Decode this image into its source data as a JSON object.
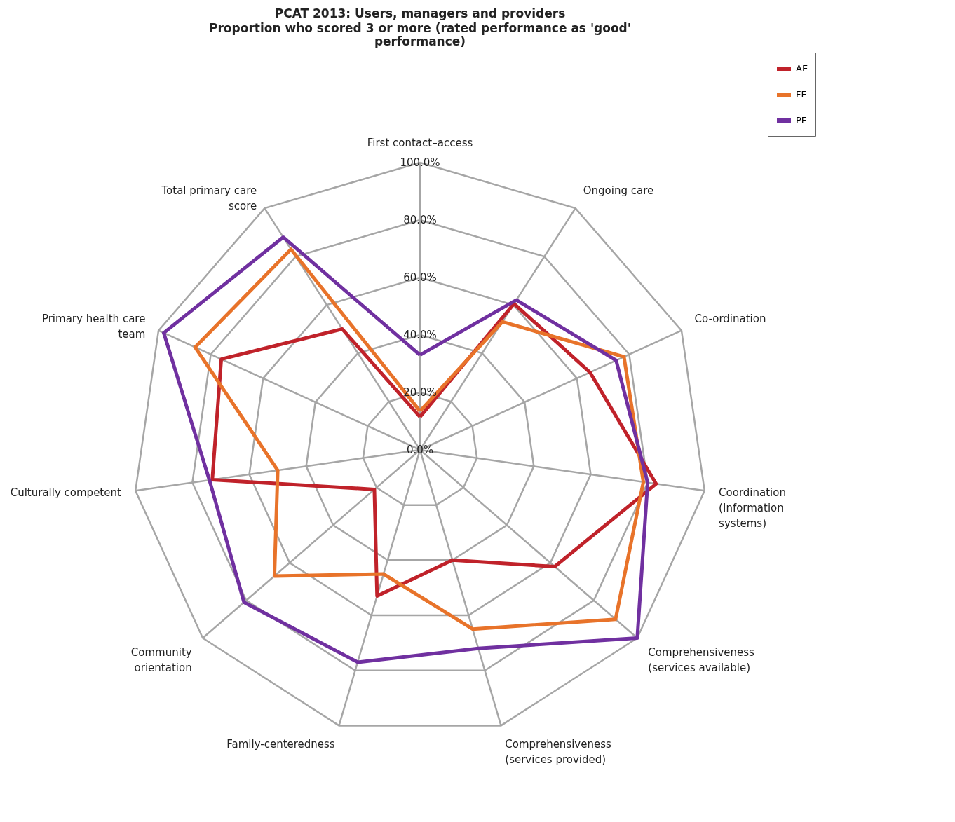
{
  "chart_data": {
    "type": "radar",
    "title": "PCAT 2013: Users, managers and providers",
    "subtitle": "Proportion who scored 3 or more (rated performance as 'good' performance)",
    "categories": [
      "First contact–access",
      "Ongoing care",
      "Co-ordination",
      "Coordination (Information systems)",
      "Comprehensiveness (services available)",
      "Comprehensiveness (services provided)",
      "Family-centeredness",
      "Community orientation",
      "Culturally competent",
      "Primary health care team",
      "Total primary care score"
    ],
    "series": [
      {
        "name": "AE",
        "color": "#c0222a",
        "values": [
          11.5,
          60.5,
          65,
          83,
          62,
          40,
          53,
          21,
          73,
          76,
          50
        ]
      },
      {
        "name": "FE",
        "color": "#e8732a",
        "values": [
          13.5,
          53,
          78,
          78.5,
          90,
          65,
          45,
          67,
          50,
          86,
          83
        ]
      },
      {
        "name": "PE",
        "color": "#7030a0",
        "values": [
          33,
          62,
          75,
          80,
          100,
          72,
          77,
          81,
          74,
          98,
          88
        ]
      }
    ],
    "ylim": [
      0,
      100
    ],
    "yticks": [
      {
        "value": 0,
        "label": "0.0%"
      },
      {
        "value": 20,
        "label": "20.0%"
      },
      {
        "value": 40,
        "label": "40.0%"
      },
      {
        "value": 60,
        "label": "60.0%"
      },
      {
        "value": 80,
        "label": "80.0%"
      },
      {
        "value": 100,
        "label": "100.0%"
      }
    ],
    "grid": true,
    "legend": "top right",
    "marker": "none",
    "line_style": "solid"
  }
}
